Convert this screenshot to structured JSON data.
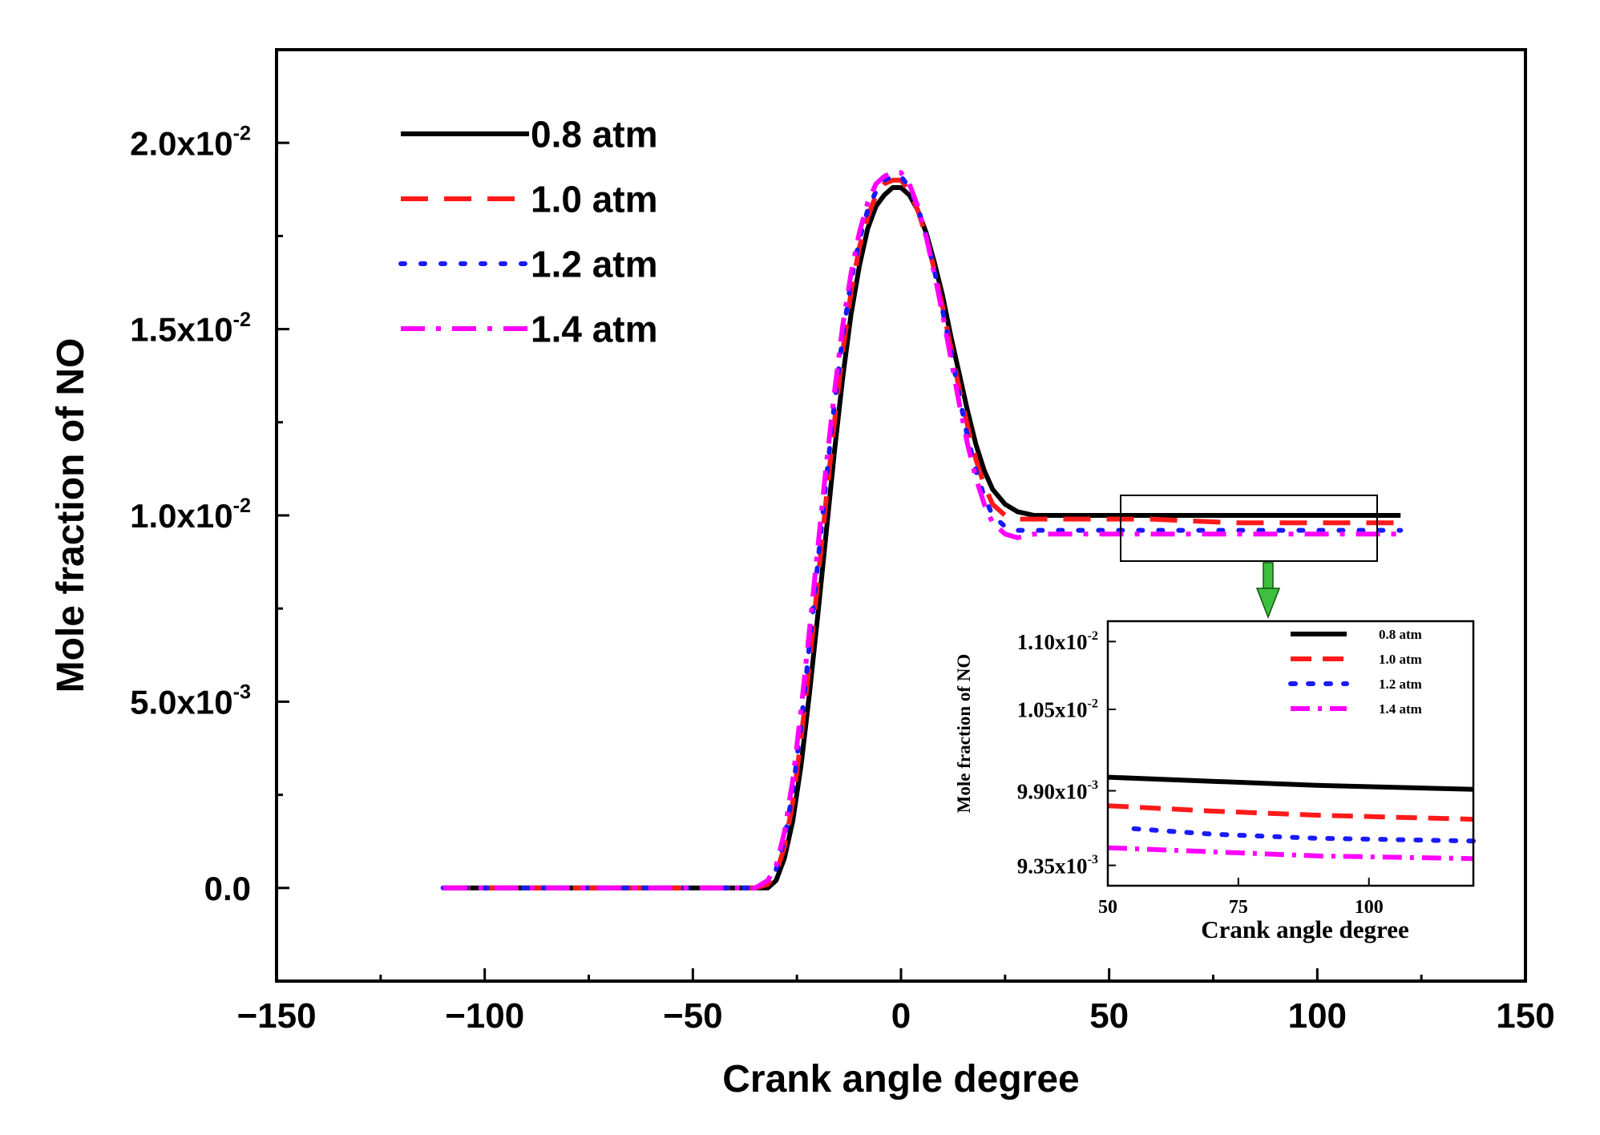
{
  "chart_data": [
    {
      "type": "line",
      "xlabel": "Crank angle degree",
      "ylabel": "Mole fraction of NO",
      "xlim": [
        -150,
        150
      ],
      "ylim": [
        -0.0025,
        0.0225
      ],
      "xticks": [
        -150,
        -100,
        -50,
        0,
        50,
        100,
        150
      ],
      "xtick_labels": [
        "−150",
        "−100",
        "−50",
        "0",
        "50",
        "100",
        "150"
      ],
      "yticks": [
        {
          "value": 0.0,
          "mant": "0.0",
          "exp": ""
        },
        {
          "value": 0.005,
          "mant": "5.0x10",
          "exp": "-3"
        },
        {
          "value": 0.01,
          "mant": "1.0x10",
          "exp": "-2"
        },
        {
          "value": 0.015,
          "mant": "1.5x10",
          "exp": "-2"
        },
        {
          "value": 0.02,
          "mant": "2.0x10",
          "exp": "-2"
        }
      ],
      "legend_position": "top-left",
      "series": [
        {
          "name": "0.8 atm",
          "color": "#000000",
          "style": "solid",
          "x": [
            -110,
            -60,
            -35,
            -32,
            -30,
            -28,
            -26,
            -24,
            -22,
            -20,
            -18,
            -16,
            -14,
            -12,
            -10,
            -8,
            -6,
            -4,
            -2,
            0,
            2,
            4,
            6,
            8,
            10,
            12,
            14,
            16,
            18,
            20,
            22,
            25,
            28,
            32,
            40,
            60,
            80,
            100,
            120
          ],
          "y": [
            0,
            0,
            0,
            0,
            0.0002,
            0.0008,
            0.0018,
            0.0033,
            0.0052,
            0.0073,
            0.0095,
            0.0117,
            0.0137,
            0.0154,
            0.0167,
            0.0177,
            0.0183,
            0.0186,
            0.0188,
            0.0188,
            0.0186,
            0.0182,
            0.0176,
            0.0168,
            0.0159,
            0.0148,
            0.0138,
            0.0128,
            0.0119,
            0.0112,
            0.0107,
            0.0103,
            0.0101,
            0.01,
            0.01,
            0.01,
            0.01,
            0.01,
            0.01
          ]
        },
        {
          "name": "1.0 atm",
          "color": "#ff1a1a",
          "style": "dash",
          "x": [
            -110,
            -60,
            -35,
            -32,
            -30,
            -28,
            -26,
            -24,
            -22,
            -20,
            -18,
            -16,
            -14,
            -12,
            -10,
            -8,
            -6,
            -4,
            -2,
            0,
            2,
            4,
            6,
            8,
            10,
            12,
            14,
            16,
            18,
            20,
            22,
            25,
            28,
            32,
            40,
            60,
            80,
            100,
            120
          ],
          "y": [
            0,
            0,
            0,
            0.0001,
            0.0004,
            0.0011,
            0.0023,
            0.004,
            0.006,
            0.0082,
            0.0104,
            0.0125,
            0.0144,
            0.016,
            0.0172,
            0.018,
            0.0186,
            0.0189,
            0.019,
            0.019,
            0.0187,
            0.0182,
            0.0175,
            0.0166,
            0.0156,
            0.0145,
            0.0134,
            0.0124,
            0.0115,
            0.0108,
            0.0103,
            0.01,
            0.0099,
            0.0099,
            0.0099,
            0.0099,
            0.0098,
            0.0098,
            0.0098
          ]
        },
        {
          "name": "1.2 atm",
          "color": "#1a1aff",
          "style": "dot",
          "x": [
            -110,
            -60,
            -35,
            -32,
            -30,
            -28,
            -26,
            -24,
            -22,
            -20,
            -18,
            -16,
            -14,
            -12,
            -10,
            -8,
            -6,
            -4,
            -2,
            0,
            2,
            4,
            6,
            8,
            10,
            12,
            14,
            16,
            18,
            20,
            22,
            25,
            28,
            32,
            40,
            60,
            80,
            100,
            120
          ],
          "y": [
            0,
            0,
            0,
            0.0002,
            0.0005,
            0.0013,
            0.0026,
            0.0044,
            0.0065,
            0.0087,
            0.0109,
            0.013,
            0.0148,
            0.0163,
            0.0174,
            0.0182,
            0.0187,
            0.019,
            0.0191,
            0.0191,
            0.0188,
            0.0183,
            0.0175,
            0.0166,
            0.0155,
            0.0144,
            0.0132,
            0.0121,
            0.0112,
            0.0105,
            0.01,
            0.0097,
            0.0096,
            0.0096,
            0.0096,
            0.0096,
            0.0096,
            0.0096,
            0.0096
          ]
        },
        {
          "name": "1.4 atm",
          "color": "#ff00ff",
          "style": "dashdot",
          "x": [
            -110,
            -60,
            -35,
            -32,
            -30,
            -28,
            -26,
            -24,
            -22,
            -20,
            -18,
            -16,
            -14,
            -12,
            -10,
            -8,
            -6,
            -4,
            -2,
            0,
            2,
            4,
            6,
            8,
            10,
            12,
            14,
            16,
            18,
            20,
            22,
            25,
            28,
            32,
            40,
            60,
            80,
            100,
            120
          ],
          "y": [
            0,
            0,
            0,
            0.0002,
            0.0006,
            0.0015,
            0.0029,
            0.0048,
            0.0069,
            0.0091,
            0.0113,
            0.0133,
            0.0151,
            0.0165,
            0.0176,
            0.0184,
            0.0189,
            0.0191,
            0.0192,
            0.0192,
            0.0189,
            0.0183,
            0.0175,
            0.0165,
            0.0154,
            0.0142,
            0.013,
            0.0119,
            0.011,
            0.0103,
            0.0098,
            0.0095,
            0.0094,
            0.0095,
            0.0095,
            0.0095,
            0.0095,
            0.0095,
            0.0095
          ]
        }
      ]
    },
    {
      "type": "line",
      "role": "inset",
      "xlabel": "Crank angle degree",
      "ylabel": "Mole fraction of NO",
      "xlim": [
        50,
        120
      ],
      "ylim": [
        0.0092,
        0.01115
      ],
      "xticks": [
        50,
        75,
        100
      ],
      "xtick_labels": [
        "50",
        "75",
        "100"
      ],
      "yticks": [
        {
          "value": 0.00935,
          "mant": "9.35x10",
          "exp": "-3"
        },
        {
          "value": 0.0099,
          "mant": "9.90x10",
          "exp": "-3"
        },
        {
          "value": 0.0105,
          "mant": "1.05x10",
          "exp": "-2"
        },
        {
          "value": 0.011,
          "mant": "1.10x10",
          "exp": "-2"
        }
      ],
      "legend_position": "top-right",
      "series": [
        {
          "name": "0.8 atm",
          "color": "#000000",
          "style": "solid",
          "x": [
            50,
            70,
            90,
            120
          ],
          "y": [
            0.01,
            0.00997,
            0.00994,
            0.00991
          ]
        },
        {
          "name": "1.0 atm",
          "color": "#ff1a1a",
          "style": "dash",
          "x": [
            50,
            70,
            90,
            120
          ],
          "y": [
            0.00979,
            0.00975,
            0.00972,
            0.00969
          ]
        },
        {
          "name": "1.2 atm",
          "color": "#1a1aff",
          "style": "dot",
          "x": [
            55,
            70,
            90,
            120
          ],
          "y": [
            0.00962,
            0.00958,
            0.00955,
            0.00953
          ]
        },
        {
          "name": "1.4 atm",
          "color": "#ff00ff",
          "style": "dashdot",
          "x": [
            50,
            70,
            90,
            120
          ],
          "y": [
            0.00948,
            0.00945,
            0.00942,
            0.0094
          ]
        }
      ]
    }
  ]
}
